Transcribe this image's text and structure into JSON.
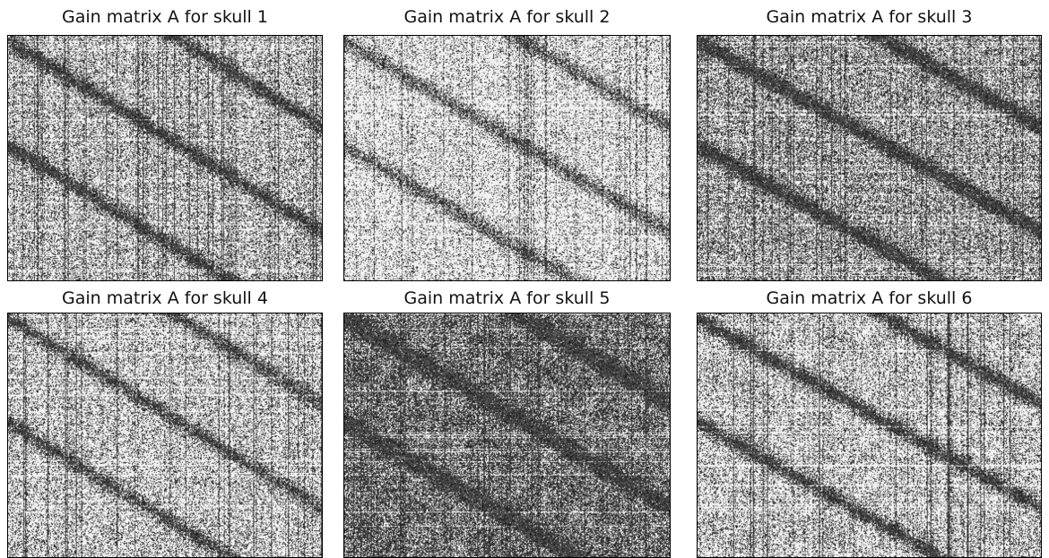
{
  "figure": {
    "panels": [
      {
        "title": "Gain matrix A for skull 1",
        "density": "medium"
      },
      {
        "title": "Gain matrix A for skull 2",
        "density": "light"
      },
      {
        "title": "Gain matrix A for skull 3",
        "density": "medium-dark"
      },
      {
        "title": "Gain matrix A for skull 4",
        "density": "medium-light"
      },
      {
        "title": "Gain matrix A for skull 5",
        "density": "dark"
      },
      {
        "title": "Gain matrix A for skull 6",
        "density": "sparse-blocky"
      }
    ]
  }
}
